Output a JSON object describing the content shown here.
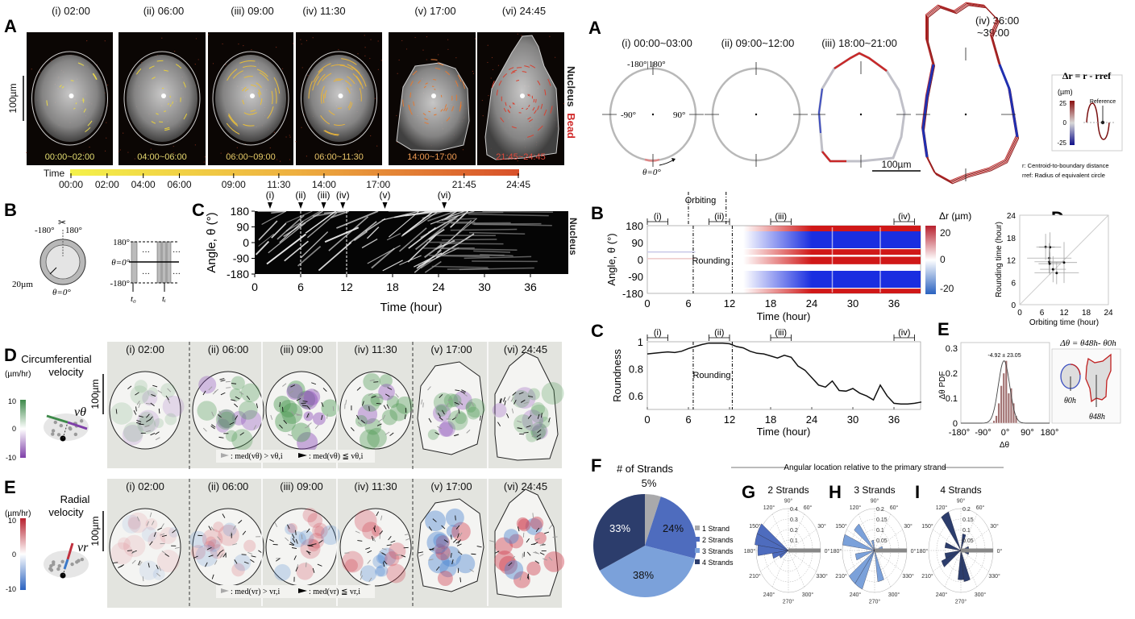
{
  "left": {
    "A": {
      "label": "A",
      "frames": [
        {
          "title": "(i) 02:00",
          "range": "00:00~02:00",
          "track_color": "#e8d84a",
          "range_color": "#e6df72"
        },
        {
          "title": "(ii) 06:00",
          "range": "04:00~06:00",
          "track_color": "#e8cf3a",
          "range_color": "#e6d870"
        },
        {
          "title": "(iii) 09:00",
          "range": "06:00~09:00",
          "track_color": "#e8be3a",
          "range_color": "#e8cc68"
        },
        {
          "title": "(iv) 11:30",
          "range": "06:00~11:30",
          "track_color": "#e8b43a",
          "range_color": "#e8c468"
        },
        {
          "title": "(v) 17:00",
          "range": "14:00~17:00",
          "track_color": "#e07a35",
          "range_color": "#ee9a52"
        },
        {
          "title": "(vi) 24:45",
          "range": "21:45~24:45",
          "track_color": "#d84030",
          "range_color": "#e24a3c"
        }
      ],
      "scale_bar": "100µm",
      "channel_nucleus": "Nucleus",
      "channel_bead": "Bead",
      "time_label": "Time",
      "time_ticks": [
        "00:00",
        "02:00",
        "04:00",
        "06:00",
        "09:00",
        "11:30",
        "14:00",
        "17:00",
        "21:45",
        "24:45"
      ],
      "colors": {
        "start": "#f2f03a",
        "end": "#d8502a"
      }
    },
    "B": {
      "label": "B",
      "minus180": "-180°",
      "plus180": "180°",
      "thickness": "20µm",
      "zero": "θ=0°",
      "strip_top": "180°",
      "strip_mid": "θ=0°",
      "strip_bot": "-180°",
      "t0": "t₀",
      "ti": "tᵢ",
      "dots": "···"
    },
    "C": {
      "label": "C",
      "ylabel": "Angle, θ (°)",
      "xlabel": "Time (hour)",
      "yticks": [
        180,
        90,
        0,
        -90,
        -180
      ],
      "xticks": [
        0,
        6,
        12,
        18,
        24,
        30,
        36
      ],
      "channel": "Nucleus",
      "markers": [
        {
          "label": "(i)",
          "t": 2
        },
        {
          "label": "(ii)",
          "t": 6
        },
        {
          "label": "(iii)",
          "t": 9
        },
        {
          "label": "(iv)",
          "t": 11.5
        },
        {
          "label": "(v)",
          "t": 17
        },
        {
          "label": "(vi)",
          "t": 24.75
        }
      ]
    },
    "D": {
      "label": "D",
      "title1": "Circumferential",
      "title2": "velocity",
      "unit": "(µm/hr)",
      "cbar_ticks": [
        "10",
        "0",
        "-10"
      ],
      "cbar_colors": {
        "high": "#3e8a4a",
        "low": "#7e3fa8"
      },
      "symbol": "vθ",
      "scale_bar": "100µm",
      "frames": [
        "(i) 02:00",
        "(ii) 06:00",
        "(iii) 09:00",
        "(iv) 11:30",
        "(v) 17:00",
        "(vi) 24:45"
      ],
      "note_a": ": med(vθ) > vθ,i",
      "note_b": ": med(vθ) ≦ vθ,i"
    },
    "E": {
      "label": "E",
      "title1": "Radial",
      "title2": "velocity",
      "unit": "(µm/hr)",
      "cbar_ticks": [
        "10",
        "0",
        "-10"
      ],
      "cbar_colors": {
        "high": "#c0303e",
        "low": "#3a78c8"
      },
      "symbol": "vr",
      "scale_bar": "100µm",
      "frames": [
        "(i) 02:00",
        "(ii) 06:00",
        "(iii) 09:00",
        "(iv) 11:30",
        "(v) 17:00",
        "(vi) 24:45"
      ],
      "note_a": ": med(vr) > vr,i",
      "note_b": ": med(vr) ≦ vr,i"
    }
  },
  "right": {
    "A": {
      "label": "A",
      "frames": [
        "(i) 00:00~03:00",
        "(ii) 09:00~12:00",
        "(iii) 18:00~21:00",
        "(iv) 36:00",
        "~39:00"
      ],
      "angle_top": "-180°|180°",
      "angle_left": "-90°",
      "angle_right": "90°",
      "angle_zero": "θ=0°",
      "scale_bar": "100µm",
      "legend_title": "Δr = r - rref",
      "legend_unit": "(µm)",
      "legend_ticks": [
        "25",
        "0",
        "-25"
      ],
      "legend_reference": "Reference",
      "note_r": "r: Centroid-to-boundary distance",
      "note_rref": "rref: Radius of equivalent circle"
    },
    "B": {
      "label": "B",
      "ylabel": "Angle, θ (°)",
      "xlabel": "Time (hour)",
      "yticks": [
        180,
        90,
        0,
        -90,
        -180
      ],
      "xticks": [
        0,
        6,
        12,
        18,
        24,
        30,
        36
      ],
      "orbiting": "Orbiting",
      "rounding": "Rounding",
      "cbar_title": "Δr (µm)",
      "cbar_ticks": [
        "20",
        "0",
        "-20"
      ],
      "intervals": [
        {
          "label": "(i)",
          "from": 0,
          "to": 3
        },
        {
          "label": "(ii)",
          "from": 9,
          "to": 12
        },
        {
          "label": "(iii)",
          "from": 18,
          "to": 21
        },
        {
          "label": "(iv)",
          "from": 36,
          "to": 39
        }
      ]
    },
    "C": {
      "label": "C",
      "ylabel": "Roundness",
      "xlabel": "Time (hour)",
      "rounding": "Rounding"
    },
    "D": {
      "label": "D",
      "xlabel": "Orbiting time (hour)",
      "ylabel": "Rounding time (hour)"
    },
    "E": {
      "label": "E",
      "ylabel": "Δθ PDF",
      "xlabel": "Δθ",
      "stat": "-4.92 ± 23.05",
      "equation": "Δθ = θ48h- θ0h",
      "theta0": "θ0h",
      "theta48": "θ48h"
    },
    "F": {
      "label": "F",
      "title": "# of Strands"
    },
    "GHI": {
      "heading": "Angular location relative to the primary strand"
    },
    "G": {
      "label": "G",
      "title": "2 Strands"
    },
    "H": {
      "label": "H",
      "title": "3 Strands"
    },
    "I": {
      "label": "I",
      "title": "4 Strands"
    }
  },
  "chart_data": [
    {
      "id": "right-C",
      "type": "line",
      "xlabel": "Time (hour)",
      "ylabel": "Roundness",
      "xlim": [
        0,
        40
      ],
      "ylim": [
        0.5,
        1
      ],
      "xticks": [
        0,
        6,
        12,
        18,
        24,
        30,
        36
      ],
      "yticks": [
        0.6,
        0.8,
        1
      ],
      "x": [
        0,
        1,
        2,
        3,
        4,
        5,
        6,
        7,
        8,
        9,
        10,
        11,
        12,
        13,
        14,
        15,
        16,
        17,
        18,
        19,
        20,
        21,
        22,
        23,
        24,
        25,
        26,
        27,
        28,
        29,
        30,
        31,
        32,
        33,
        34,
        35,
        36,
        37,
        38,
        39,
        40
      ],
      "y": [
        0.91,
        0.915,
        0.92,
        0.925,
        0.92,
        0.93,
        0.95,
        0.965,
        0.98,
        0.99,
        0.99,
        0.99,
        0.985,
        0.965,
        0.955,
        0.93,
        0.915,
        0.91,
        0.895,
        0.88,
        0.9,
        0.885,
        0.82,
        0.79,
        0.735,
        0.68,
        0.665,
        0.71,
        0.64,
        0.635,
        0.655,
        0.62,
        0.6,
        0.57,
        0.68,
        0.6,
        0.545,
        0.54,
        0.54,
        0.545,
        0.555
      ],
      "intervals": [
        [
          0,
          3
        ],
        [
          9,
          12
        ],
        [
          18,
          21
        ],
        [
          36,
          39
        ]
      ],
      "rounding_window": [
        6.7,
        12.4
      ]
    },
    {
      "id": "right-D",
      "type": "scatter",
      "xlabel": "Orbiting time (hour)",
      "ylabel": "Rounding time (hour)",
      "xlim": [
        0,
        24
      ],
      "ylim": [
        0,
        24
      ],
      "xticks": [
        0,
        6,
        12,
        18,
        24
      ],
      "yticks": [
        0,
        6,
        12,
        18,
        24
      ],
      "points": [
        {
          "x": 7.0,
          "y": 15.5,
          "xerr": 2.5,
          "yerr": 3.5
        },
        {
          "x": 8.2,
          "y": 15.4,
          "xerr": 3.0,
          "yerr": 4.0
        },
        {
          "x": 8.0,
          "y": 12.5,
          "xerr": 6.0,
          "yerr": 4.0
        },
        {
          "x": 8.0,
          "y": 11.5,
          "xerr": 4.0,
          "yerr": 3.0
        },
        {
          "x": 8.1,
          "y": 11.0,
          "xerr": 3.0,
          "yerr": 3.0
        },
        {
          "x": 9.0,
          "y": 9.5,
          "xerr": 3.5,
          "yerr": 3.5
        },
        {
          "x": 10.0,
          "y": 8.5,
          "xerr": 6.0,
          "yerr": 3.0
        },
        {
          "x": 12.0,
          "y": 11.3,
          "xerr": 3.5,
          "yerr": 5.5
        }
      ]
    },
    {
      "id": "right-E",
      "type": "bar",
      "xlabel": "Δθ",
      "ylabel": "Δθ PDF",
      "xlim": [
        -180,
        180
      ],
      "ylim": [
        0,
        0.3
      ],
      "xticks": [
        "-180°",
        "-90°",
        "0°",
        "90°",
        "180°"
      ],
      "yticks": [
        0,
        0.1,
        0.2,
        0.3
      ],
      "bins": [
        -45,
        -35,
        -25,
        -15,
        -5,
        5,
        15,
        25,
        35,
        45
      ],
      "values": [
        0.01,
        0.03,
        0.08,
        0.15,
        0.2,
        0.25,
        0.12,
        0.14,
        0.08,
        0.03
      ],
      "fit": {
        "mean": -4.92,
        "sd": 23.05
      }
    },
    {
      "id": "right-F",
      "type": "pie",
      "title": "# of Strands",
      "labels": [
        "1 Strand",
        "2 Strands",
        "3 Strands",
        "4 Strands"
      ],
      "values": [
        5,
        24,
        38,
        33
      ],
      "value_labels": [
        "5%",
        "24%",
        "38%",
        "33%"
      ],
      "colors": [
        "#a9a9ab",
        "#4e6cbe",
        "#7ba1da",
        "#2c3d6c"
      ]
    },
    {
      "id": "right-G",
      "type": "polar-histogram",
      "title": "2 Strands",
      "rmax": 0.4,
      "rticks": [
        "0.1",
        "0.2",
        "0.3",
        "0.4"
      ],
      "color": "#4e6cbe",
      "bins": [
        {
          "angle": 150,
          "value": 0.42
        },
        {
          "angle": 165,
          "value": 0.42
        },
        {
          "angle": 180,
          "value": 0.38
        },
        {
          "angle": 195,
          "value": 0.2
        },
        {
          "angle": 210,
          "value": 0.12
        }
      ],
      "reference_angle": 0
    },
    {
      "id": "right-H",
      "type": "polar-histogram",
      "title": "3 Strands",
      "rmax": 0.2,
      "rticks": [
        "0.05",
        "0.1",
        "0.15",
        "0.2"
      ],
      "color": "#7ba1da",
      "bins": [
        {
          "angle": 135,
          "value": 0.16
        },
        {
          "angle": 165,
          "value": 0.2
        },
        {
          "angle": 195,
          "value": 0.12
        },
        {
          "angle": 225,
          "value": 0.2
        },
        {
          "angle": 240,
          "value": 0.2
        },
        {
          "angle": 285,
          "value": 0.15
        },
        {
          "angle": 15,
          "value": 0.05
        },
        {
          "angle": 105,
          "value": 0.05
        }
      ],
      "reference_angle": 0
    },
    {
      "id": "right-I",
      "type": "polar-histogram",
      "title": "4 Strands",
      "rmax": 0.2,
      "rticks": [
        "0.05",
        "0.1",
        "0.15",
        "0.2"
      ],
      "color": "#2c3d6c",
      "bins": [
        {
          "angle": 120,
          "value": 0.2
        },
        {
          "angle": 75,
          "value": 0.08
        },
        {
          "angle": 165,
          "value": 0.1
        },
        {
          "angle": 195,
          "value": 0.1
        },
        {
          "angle": 210,
          "value": 0.13
        },
        {
          "angle": 270,
          "value": 0.14
        },
        {
          "angle": 285,
          "value": 0.15
        },
        {
          "angle": 15,
          "value": 0.05
        },
        {
          "angle": 345,
          "value": 0.05
        }
      ],
      "reference_angle": 0
    }
  ]
}
